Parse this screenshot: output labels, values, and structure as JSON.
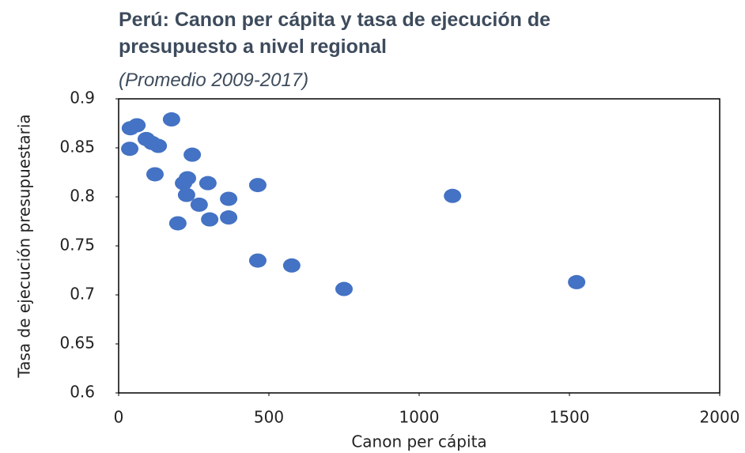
{
  "chart_data": {
    "type": "scatter",
    "title": "Perú: Canon per cápita y tasa de ejecución de presupuesto a nivel regional",
    "subtitle": "(Promedio 2009-2017)",
    "x_label": "Canon per cápita",
    "y_label": "Tasa de ejecución presupuestaria",
    "color": "#4472c4",
    "x": [
      39,
      61,
      37,
      92,
      111,
      132,
      176,
      245,
      121,
      216,
      229,
      226,
      297,
      366,
      268,
      197,
      303,
      366,
      463,
      463,
      576,
      750,
      1111,
      1524
    ],
    "values": [
      0.87,
      0.873,
      0.849,
      0.859,
      0.855,
      0.852,
      0.879,
      0.843,
      0.823,
      0.814,
      0.819,
      0.802,
      0.814,
      0.798,
      0.792,
      0.773,
      0.777,
      0.779,
      0.812,
      0.735,
      0.73,
      0.706,
      0.801,
      0.713
    ],
    "xlim": [
      0,
      2000
    ],
    "xticks": [
      0,
      500,
      1000,
      1500,
      2000
    ],
    "ylim": [
      0.6,
      0.9
    ],
    "yticks": [
      0.6,
      0.65,
      0.7,
      0.75,
      0.8,
      0.85,
      0.9
    ],
    "grid": false
  }
}
